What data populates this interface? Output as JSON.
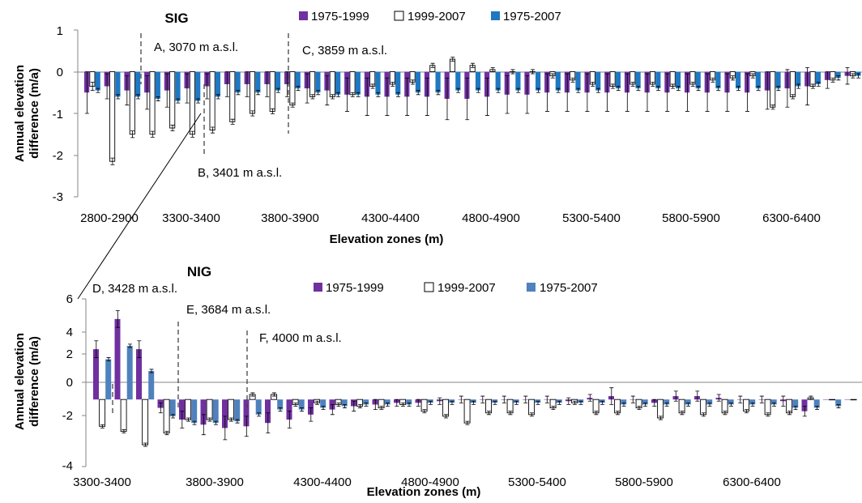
{
  "chart_data": [
    {
      "type": "bar",
      "title": "SIG",
      "xlabel": "Elevation zones (m)",
      "ylabel": "Annual elevation difference (m/a)",
      "ylim": [
        -3,
        1
      ],
      "yticks": [
        1,
        0,
        -1,
        -2,
        -3
      ],
      "grid": false,
      "legend_placement": "top",
      "error_bars": true,
      "zone_start": 2800,
      "zone_step": 100,
      "tick_labels": [
        "2800-2900",
        "3300-3400",
        "3800-3900",
        "4300-4400",
        "4800-4900",
        "5300-5400",
        "5800-5900",
        "6300-6400"
      ],
      "series": [
        {
          "name": "1975-1999",
          "color": "#7030a0",
          "values": [
            -0.5,
            -0.35,
            -0.45,
            -0.5,
            -0.45,
            -0.4,
            -0.35,
            -0.3,
            -0.3,
            -0.3,
            -0.3,
            -0.4,
            -0.45,
            -0.55,
            -0.6,
            -0.6,
            -0.6,
            -0.6,
            -0.65,
            -0.65,
            -0.6,
            -0.55,
            -0.55,
            -0.5,
            -0.5,
            -0.5,
            -0.5,
            -0.5,
            -0.5,
            -0.5,
            -0.5,
            -0.5,
            -0.5,
            -0.5,
            -0.45,
            -0.4,
            -0.35,
            -0.2,
            -0.1,
            0.2,
            0,
            0,
            0,
            0
          ],
          "errors": [
            0.5,
            0.3,
            0.35,
            0.4,
            0.4,
            0.35,
            0.3,
            0.3,
            0.3,
            0.3,
            0.3,
            0.35,
            0.35,
            0.4,
            0.45,
            0.45,
            0.45,
            0.45,
            0.5,
            0.5,
            0.45,
            0.45,
            0.45,
            0.45,
            0.45,
            0.45,
            0.45,
            0.45,
            0.45,
            0.45,
            0.45,
            0.45,
            0.45,
            0.45,
            0.45,
            0.45,
            0.45,
            0.2,
            0.2,
            0.5,
            0,
            0,
            0,
            0
          ]
        },
        {
          "name": "1999-2007",
          "color": "#ffffff",
          "values": [
            -0.35,
            -2.15,
            -1.5,
            -1.5,
            -1.35,
            -1.5,
            -1.4,
            -1.2,
            -1.0,
            -0.95,
            -0.8,
            -0.6,
            -0.6,
            -0.55,
            -0.35,
            -0.3,
            -0.25,
            0.15,
            0.3,
            0.15,
            0.05,
            0,
            0,
            -0.1,
            -0.2,
            -0.3,
            -0.35,
            -0.3,
            -0.3,
            -0.35,
            -0.3,
            -0.2,
            -0.15,
            -0.1,
            -0.85,
            -0.6,
            -0.35,
            -0.2,
            -0.1,
            -0.05,
            -0.45,
            -0.5,
            -0.3,
            -0.15
          ],
          "errors": [
            0.1,
            0.08,
            0.08,
            0.07,
            0.07,
            0.07,
            0.07,
            0.06,
            0.06,
            0.06,
            0.05,
            0.05,
            0.05,
            0.05,
            0.05,
            0.05,
            0.05,
            0.05,
            0.05,
            0.05,
            0.05,
            0.05,
            0.05,
            0.05,
            0.05,
            0.05,
            0.05,
            0.05,
            0.05,
            0.05,
            0.05,
            0.05,
            0.05,
            0.05,
            0.05,
            0.05,
            0.05,
            0.05,
            0.05,
            0.05,
            0.05,
            0.05,
            0.05,
            0.05
          ]
        },
        {
          "name": "1975-2007",
          "color": "#1f78c1",
          "values": [
            -0.45,
            -0.6,
            -0.6,
            -0.65,
            -0.7,
            -0.7,
            -0.6,
            -0.5,
            -0.5,
            -0.45,
            -0.4,
            -0.5,
            -0.55,
            -0.55,
            -0.55,
            -0.55,
            -0.5,
            -0.5,
            -0.45,
            -0.45,
            -0.45,
            -0.45,
            -0.45,
            -0.45,
            -0.45,
            -0.45,
            -0.4,
            -0.4,
            -0.4,
            -0.4,
            -0.4,
            -0.4,
            -0.4,
            -0.4,
            -0.4,
            -0.35,
            -0.3,
            -0.15,
            -0.1,
            -0.05,
            -0.05,
            -0.05,
            0,
            0
          ],
          "errors": [
            0.05,
            0.05,
            0.05,
            0.05,
            0.05,
            0.05,
            0.05,
            0.05,
            0.05,
            0.05,
            0.05,
            0.05,
            0.05,
            0.05,
            0.05,
            0.05,
            0.05,
            0.05,
            0.05,
            0.05,
            0.05,
            0.05,
            0.05,
            0.05,
            0.05,
            0.05,
            0.05,
            0.05,
            0.05,
            0.05,
            0.05,
            0.05,
            0.05,
            0.05,
            0.05,
            0.05,
            0.05,
            0.05,
            0.05,
            0.05,
            0.05,
            0.05,
            0.05,
            0.05
          ]
        }
      ],
      "annotations": [
        {
          "text": "A, 3070 m a.s.l.",
          "zone": 3070
        },
        {
          "text": "B, 3401 m a.s.l.",
          "zone": 3401
        },
        {
          "text": "C, 3859 m a.s.l.",
          "zone": 3859
        }
      ]
    },
    {
      "type": "bar",
      "title": "NIG",
      "xlabel": "Elevation zones (m)",
      "ylabel": "Annual elevation difference (m/a)",
      "ylim": [
        -4,
        6
      ],
      "yticks": [
        6,
        4,
        2,
        0,
        -2,
        -4
      ],
      "grid": false,
      "legend_placement": "top",
      "error_bars": true,
      "zone_start": 3300,
      "zone_step": 100,
      "tick_labels": [
        "3300-3400",
        "3800-3900",
        "4300-4400",
        "4800-4900",
        "5300-5400",
        "5800-5900",
        "6300-6400"
      ],
      "series": [
        {
          "name": "1975-1999",
          "color": "#7030a0",
          "values": [
            3.0,
            4.8,
            3.0,
            -0.5,
            -1.2,
            -1.5,
            -1.7,
            -1.6,
            -1.4,
            -1.2,
            -0.9,
            -0.6,
            -0.4,
            -0.3,
            -0.2,
            -0.2,
            -0.1,
            0,
            0,
            0,
            0,
            0,
            -0.1,
            0.1,
            0.2,
            0,
            -0.2,
            0.2,
            0.2,
            0.1,
            0,
            0,
            -0.1,
            -0.7,
            0,
            0,
            0
          ],
          "errors": [
            0.5,
            0.5,
            0.5,
            0.3,
            0.5,
            0.6,
            0.7,
            0.6,
            0.6,
            0.5,
            0.4,
            0.3,
            0.3,
            0.3,
            0.2,
            0.2,
            0.2,
            0.2,
            0.2,
            0.2,
            0.2,
            0.2,
            0.2,
            0.2,
            0.5,
            0.2,
            0.2,
            0.3,
            0.3,
            0.2,
            0.2,
            0.2,
            0.3,
            0.3,
            0,
            0,
            0
          ],
          "errors_note": ""
        },
        {
          "name": "1999-2007",
          "color": "#ffffff",
          "values": [
            -1.6,
            -1.9,
            -2.7,
            -2.0,
            -1.2,
            -1.2,
            -1.2,
            0.3,
            0.3,
            -0.3,
            -0.2,
            -0.3,
            -0.4,
            -0.5,
            -0.3,
            -0.7,
            -1.0,
            -1.4,
            -0.8,
            -0.8,
            -0.9,
            -0.5,
            -0.2,
            -0.8,
            -0.8,
            -0.5,
            -1.1,
            -0.8,
            -0.9,
            -0.8,
            -0.7,
            -0.9,
            -0.8,
            0.1,
            0,
            0,
            0
          ],
          "errors": [
            0.1,
            0.1,
            0.1,
            0.1,
            0.1,
            0.1,
            0.1,
            0.1,
            0.1,
            0.1,
            0.1,
            0.1,
            0.1,
            0.1,
            0.1,
            0.1,
            0.1,
            0.1,
            0.1,
            0.1,
            0.1,
            0.1,
            0.1,
            0.1,
            0.1,
            0.1,
            0.1,
            0.1,
            0.1,
            0.1,
            0.1,
            0.1,
            0.1,
            0.1,
            0,
            0,
            0
          ]
        },
        {
          "name": "1975-2007",
          "color": "#4f81bd",
          "values": [
            2.4,
            3.2,
            1.7,
            -1.0,
            -1.4,
            -1.4,
            -1.3,
            -0.9,
            -0.6,
            -0.6,
            -0.5,
            -0.4,
            -0.3,
            -0.3,
            -0.3,
            -0.2,
            -0.2,
            -0.2,
            -0.2,
            -0.2,
            -0.2,
            -0.2,
            -0.2,
            -0.2,
            -0.3,
            -0.3,
            -0.3,
            -0.3,
            -0.3,
            -0.3,
            -0.3,
            -0.3,
            -0.5,
            -0.5,
            -0.4,
            -0.3,
            -0.3
          ],
          "errors": [
            0.1,
            0.1,
            0.1,
            0.1,
            0.1,
            0.1,
            0.1,
            0.1,
            0.1,
            0.1,
            0.1,
            0.1,
            0.1,
            0.1,
            0.1,
            0.1,
            0.1,
            0.1,
            0.1,
            0.1,
            0.1,
            0.1,
            0.1,
            0.1,
            0.1,
            0.1,
            0.1,
            0.1,
            0.1,
            0.1,
            0.1,
            0.1,
            0.1,
            0.1,
            0.1,
            0.1,
            0.1
          ]
        }
      ],
      "annotations": [
        {
          "text": "D, 3428 m a.s.l.",
          "zone": 3428
        },
        {
          "text": "E, 3684 m a.s.l.",
          "zone": 3684
        },
        {
          "text": "F, 4000 m a.s.l.",
          "zone": 4000
        }
      ]
    }
  ],
  "labels": {
    "sig_ylabel_line1": "Annual elevation",
    "sig_ylabel_line2": "difference (m/a)",
    "nig_ylabel_line1": "Annual elevation",
    "nig_ylabel_line2": "difference (m/a)"
  }
}
